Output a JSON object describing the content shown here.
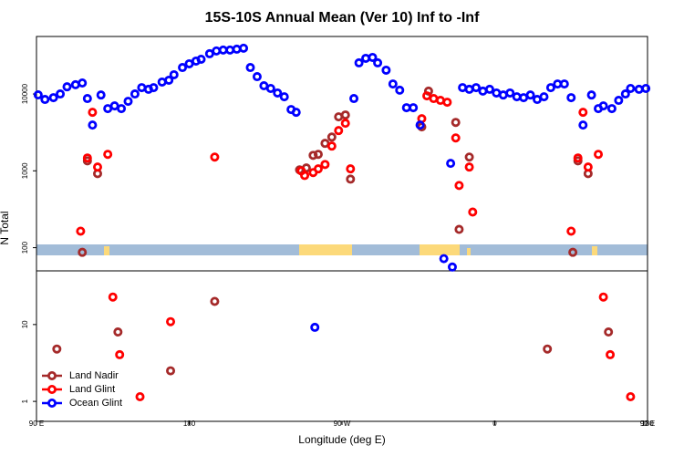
{
  "chart_data": {
    "type": "scatter",
    "title": "15S-10S Annual Mean (Ver 10)   Inf to -Inf",
    "xlabel": "Longitude (deg E)",
    "ylabel": "N Total",
    "xlim": [
      90,
      450
    ],
    "xticks": [
      {
        "value": 90,
        "label": "90 E"
      },
      {
        "value": 180,
        "label": "180"
      },
      {
        "value": 270,
        "label": "90 W"
      },
      {
        "value": 360,
        "label": "0"
      },
      {
        "value": 450,
        "label": "90 E"
      },
      {
        "value": 540,
        "label": "180"
      }
    ],
    "ylim": [
      0.55,
      56000
    ],
    "yscale": "log",
    "yticks": [
      1,
      10,
      100,
      1000,
      10000
    ],
    "legend": "lower left",
    "series": [
      {
        "name": "Land Nadir",
        "color": "#a52a2a",
        "x": [
          102,
          117,
          120,
          126,
          138,
          169,
          195,
          245,
          249,
          253,
          256,
          260,
          264,
          268,
          272,
          275,
          317,
          321,
          337,
          339,
          345,
          391,
          406,
          409,
          415,
          427
        ],
        "values": [
          4.8,
          87,
          1350,
          920,
          8,
          2.5,
          20,
          1030,
          1090,
          1590,
          1640,
          2280,
          2750,
          5040,
          5330,
          780,
          3730,
          10900,
          4270,
          173,
          1510,
          4.8,
          87,
          1350,
          920,
          8
        ]
      },
      {
        "name": "Land Glint",
        "color": "#ff0000",
        "x": [
          116,
          120,
          123,
          126,
          132,
          135,
          139,
          151,
          169,
          195,
          246,
          248,
          253,
          256,
          260,
          264,
          268,
          272,
          275,
          317,
          320,
          324,
          328,
          332,
          337,
          339,
          345,
          347,
          405,
          409,
          412,
          415,
          421,
          424,
          428,
          440
        ],
        "values": [
          164,
          1470,
          5780,
          1120,
          1640,
          22.8,
          4.05,
          1.15,
          10.9,
          1510,
          1000,
          870,
          950,
          1060,
          1210,
          2100,
          3340,
          4160,
          1060,
          4770,
          9460,
          8720,
          8260,
          7810,
          2680,
          645,
          1120,
          291,
          164,
          1470,
          5780,
          1120,
          1640,
          22.8,
          4.05,
          1.15
        ]
      },
      {
        "name": "Ocean Glint",
        "color": "#0000ff",
        "x": [
          91,
          95,
          100,
          104,
          108,
          113,
          117,
          120,
          123,
          128,
          132,
          136,
          140,
          144,
          148,
          152,
          156,
          159,
          164,
          168,
          171,
          176,
          180,
          184,
          187,
          192,
          196,
          200,
          204,
          208,
          212,
          216,
          220,
          224,
          228,
          232,
          236,
          240,
          243,
          254,
          277,
          280,
          284,
          288,
          291,
          296,
          300,
          304,
          308,
          312,
          316,
          330,
          334,
          335,
          341,
          345,
          349,
          353,
          357,
          361,
          365,
          369,
          373,
          377,
          381,
          385,
          389,
          393,
          397,
          401,
          405,
          412,
          417,
          421,
          424,
          429,
          433,
          437,
          440,
          445,
          449
        ],
        "values": [
          9730,
          8490,
          8960,
          10000,
          12400,
          13200,
          13900,
          8720,
          3940,
          9700,
          6450,
          7000,
          6450,
          8030,
          10000,
          12100,
          11500,
          12100,
          14300,
          15100,
          17800,
          22100,
          24700,
          26800,
          28300,
          33400,
          36300,
          37300,
          37300,
          38300,
          39400,
          22100,
          16800,
          12800,
          11800,
          10300,
          9200,
          6280,
          5780,
          9.2,
          8720,
          25400,
          29100,
          29900,
          25400,
          20400,
          13500,
          11200,
          6630,
          6630,
          3940,
          72,
          1250,
          56,
          12100,
          11500,
          12100,
          10900,
          11500,
          10300,
          9700,
          10300,
          9200,
          8960,
          9700,
          8490,
          9200,
          12100,
          13500,
          13500,
          8960,
          3940,
          9700,
          6450,
          7000,
          6450,
          8260,
          10000,
          11800,
          11500,
          11800
        ]
      }
    ]
  }
}
